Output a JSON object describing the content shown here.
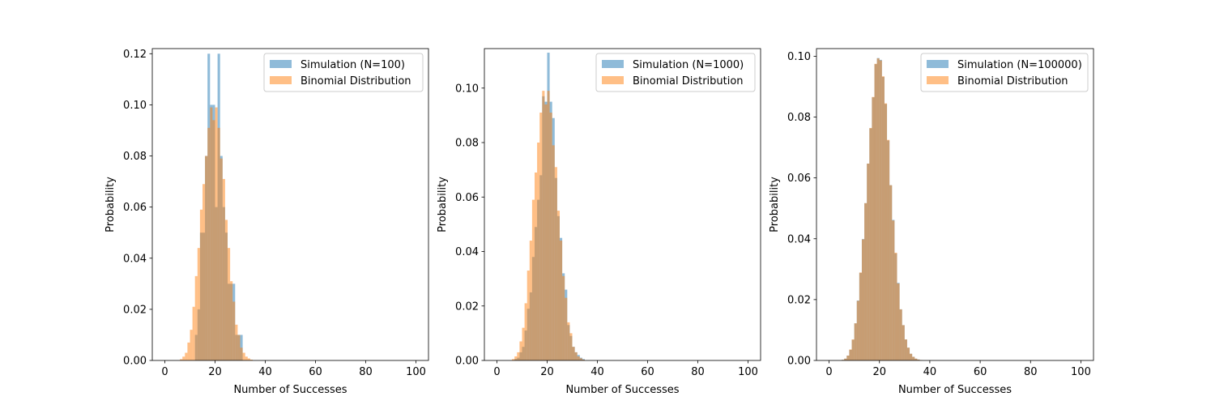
{
  "chart_data": [
    {
      "type": "bar",
      "xlabel": "Number of Successes",
      "ylabel": "Probability",
      "xlim": [
        -5,
        105
      ],
      "ylim": [
        0,
        0.122
      ],
      "x_ticks": [
        0,
        20,
        40,
        60,
        80,
        100
      ],
      "y_ticks": [
        0.0,
        0.02,
        0.04,
        0.06,
        0.08,
        0.1,
        0.12
      ],
      "legend_position": "top-right",
      "grid": false,
      "series": [
        {
          "name": "Simulation (N=100)",
          "color": "#1f77b4",
          "alpha": 0.5,
          "bins": [
            12,
            13,
            14,
            15,
            16,
            17,
            18,
            19,
            20,
            21,
            22,
            23,
            24,
            25,
            26,
            27,
            28,
            29,
            30
          ],
          "values": [
            0.01,
            0.02,
            0.05,
            0.05,
            0.08,
            0.12,
            0.1,
            0.1,
            0.06,
            0.12,
            0.08,
            0.06,
            0.05,
            0.03,
            0.03,
            0.03,
            0.01,
            0.01,
            0.01
          ]
        },
        {
          "name": "Binomial Distribution",
          "color": "#ff7f0e",
          "alpha": 0.5,
          "bins": [
            6,
            7,
            8,
            9,
            10,
            11,
            12,
            13,
            14,
            15,
            16,
            17,
            18,
            19,
            20,
            21,
            22,
            23,
            24,
            25,
            26,
            27,
            28,
            29,
            30,
            31,
            32,
            33,
            34
          ],
          "values": [
            0.0005,
            0.0015,
            0.003,
            0.007,
            0.012,
            0.021,
            0.033,
            0.044,
            0.059,
            0.069,
            0.08,
            0.091,
            0.099,
            0.094,
            0.099,
            0.091,
            0.079,
            0.071,
            0.055,
            0.044,
            0.031,
            0.023,
            0.014,
            0.01,
            0.005,
            0.003,
            0.0015,
            0.0008,
            0.0003
          ]
        }
      ]
    },
    {
      "type": "bar",
      "xlabel": "Number of Successes",
      "ylabel": "Probability",
      "xlim": [
        -5,
        105
      ],
      "ylim": [
        0,
        0.1145
      ],
      "x_ticks": [
        0,
        20,
        40,
        60,
        80,
        100
      ],
      "y_ticks": [
        0.0,
        0.02,
        0.04,
        0.06,
        0.08,
        0.1
      ],
      "legend_position": "top-right",
      "grid": false,
      "series": [
        {
          "name": "Simulation (N=1000)",
          "color": "#1f77b4",
          "alpha": 0.5,
          "bins": [
            7,
            8,
            9,
            10,
            11,
            12,
            13,
            14,
            15,
            16,
            17,
            18,
            19,
            20,
            21,
            22,
            23,
            24,
            25,
            26,
            27,
            28,
            29,
            30,
            31,
            32,
            33,
            34
          ],
          "values": [
            0.0005,
            0.001,
            0.003,
            0.005,
            0.011,
            0.019,
            0.025,
            0.038,
            0.049,
            0.059,
            0.068,
            0.097,
            0.095,
            0.113,
            0.095,
            0.089,
            0.067,
            0.053,
            0.045,
            0.032,
            0.026,
            0.013,
            0.009,
            0.005,
            0.003,
            0.002,
            0.001,
            0.0005
          ]
        },
        {
          "name": "Binomial Distribution",
          "color": "#ff7f0e",
          "alpha": 0.5,
          "bins": [
            6,
            7,
            8,
            9,
            10,
            11,
            12,
            13,
            14,
            15,
            16,
            17,
            18,
            19,
            20,
            21,
            22,
            23,
            24,
            25,
            26,
            27,
            28,
            29,
            30,
            31,
            32,
            33,
            34
          ],
          "values": [
            0.0005,
            0.0015,
            0.003,
            0.007,
            0.012,
            0.021,
            0.033,
            0.044,
            0.059,
            0.069,
            0.08,
            0.091,
            0.099,
            0.094,
            0.099,
            0.091,
            0.079,
            0.071,
            0.055,
            0.044,
            0.031,
            0.023,
            0.014,
            0.01,
            0.005,
            0.003,
            0.0015,
            0.0008,
            0.0003
          ]
        }
      ]
    },
    {
      "type": "bar",
      "xlabel": "Number of Successes",
      "ylabel": "Probability",
      "xlim": [
        -5,
        105
      ],
      "ylim": [
        0,
        0.1025
      ],
      "x_ticks": [
        0,
        20,
        40,
        60,
        80,
        100
      ],
      "y_ticks": [
        0.0,
        0.02,
        0.04,
        0.06,
        0.08,
        0.1
      ],
      "legend_position": "top-right",
      "grid": false,
      "series": [
        {
          "name": "Simulation (N=100000)",
          "color": "#1f77b4",
          "alpha": 0.5,
          "bins": [
            5,
            6,
            7,
            8,
            9,
            10,
            11,
            12,
            13,
            14,
            15,
            16,
            17,
            18,
            19,
            20,
            21,
            22,
            23,
            24,
            25,
            26,
            27,
            28,
            29,
            30,
            31,
            32,
            33,
            34,
            35,
            36
          ],
          "values": [
            0.0002,
            0.0006,
            0.0016,
            0.0035,
            0.0068,
            0.0122,
            0.0197,
            0.0288,
            0.0399,
            0.0517,
            0.0647,
            0.0763,
            0.0865,
            0.0974,
            0.0994,
            0.0988,
            0.0932,
            0.0843,
            0.0723,
            0.0576,
            0.0462,
            0.0352,
            0.0255,
            0.0168,
            0.0116,
            0.0069,
            0.0042,
            0.0022,
            0.0012,
            0.0006,
            0.0003,
            0.0001
          ]
        },
        {
          "name": "Binomial Distribution",
          "color": "#ff7f0e",
          "alpha": 0.5,
          "bins": [
            5,
            6,
            7,
            8,
            9,
            10,
            11,
            12,
            13,
            14,
            15,
            16,
            17,
            18,
            19,
            20,
            21,
            22,
            23,
            24,
            25,
            26,
            27,
            28,
            29,
            30,
            31,
            32,
            33,
            34,
            35,
            36
          ],
          "values": [
            0.0002,
            0.0006,
            0.0016,
            0.0036,
            0.0069,
            0.0122,
            0.0196,
            0.0289,
            0.0398,
            0.0517,
            0.0647,
            0.0764,
            0.0866,
            0.0975,
            0.0993,
            0.0986,
            0.0934,
            0.0845,
            0.0725,
            0.0576,
            0.046,
            0.0354,
            0.0253,
            0.0168,
            0.0116,
            0.0069,
            0.0042,
            0.0022,
            0.0012,
            0.0006,
            0.0003,
            0.0001
          ]
        }
      ]
    }
  ]
}
